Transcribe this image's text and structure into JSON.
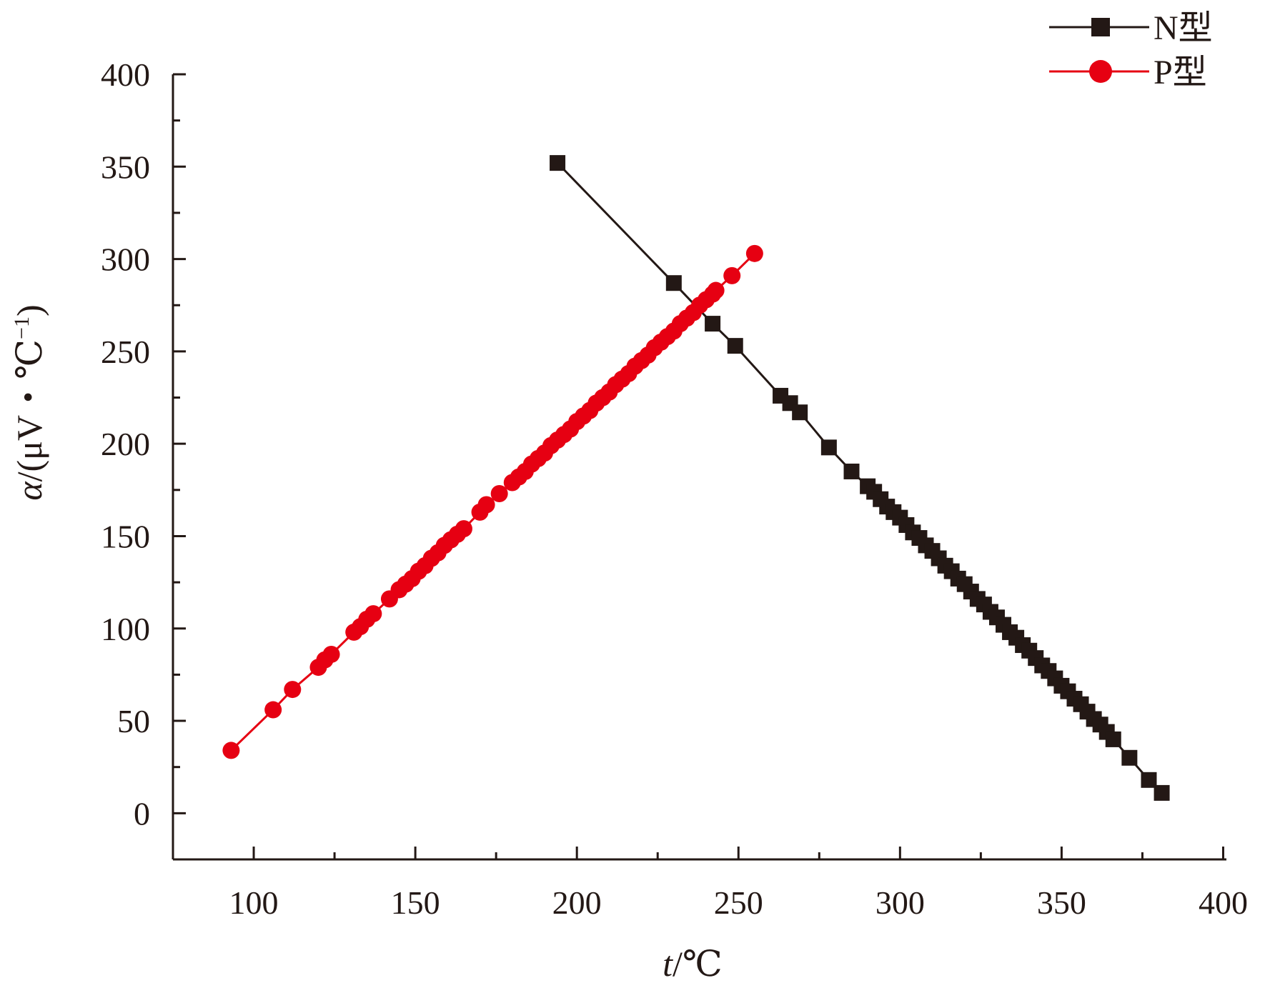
{
  "chart_data": {
    "type": "line",
    "title": "",
    "xlabel": {
      "italic": "t",
      "rest": "/℃"
    },
    "ylabel": {
      "italic": "α",
      "rest": "/(μV・℃",
      "sup": "−1",
      "close": ")"
    },
    "xlim": [
      75,
      401
    ],
    "ylim": [
      -25,
      400
    ],
    "xticks": [
      100,
      150,
      200,
      250,
      300,
      350,
      400
    ],
    "xtick_labels": [
      "100",
      "150",
      "200",
      "250",
      "300",
      "350",
      "400"
    ],
    "yticks": [
      0,
      50,
      100,
      150,
      200,
      250,
      300,
      350,
      400
    ],
    "ytick_labels": [
      "0",
      "50",
      "100",
      "150",
      "200",
      "250",
      "300",
      "350",
      "400"
    ],
    "grid": false,
    "legend_position": "top-right",
    "series": [
      {
        "name": "N型",
        "color": "#231815",
        "marker": "square",
        "x": [
          194,
          230,
          242,
          249,
          263,
          266,
          269,
          278,
          285,
          290,
          292,
          294,
          296,
          298,
          300,
          302,
          304,
          306,
          308,
          310,
          312,
          314,
          316,
          318,
          320,
          322,
          324,
          326,
          328,
          330,
          332,
          334,
          336,
          338,
          340,
          342,
          344,
          346,
          348,
          350,
          352,
          354,
          356,
          358,
          360,
          362,
          364,
          366,
          371,
          377,
          381
        ],
        "y": [
          352,
          287,
          265,
          253,
          226,
          222,
          217,
          198,
          185,
          177,
          174,
          170,
          166,
          163,
          160,
          156,
          152,
          149,
          145,
          142,
          138,
          134,
          131,
          127,
          124,
          120,
          116,
          113,
          109,
          106,
          102,
          98,
          95,
          91,
          88,
          84,
          80,
          77,
          73,
          69,
          66,
          62,
          59,
          55,
          51,
          48,
          44,
          40,
          30,
          18,
          11
        ]
      },
      {
        "name": "P型",
        "color": "#e60012",
        "marker": "circle",
        "x": [
          93,
          106,
          112,
          120,
          122,
          124,
          131,
          133,
          135,
          137,
          142,
          145,
          147,
          149,
          151,
          153,
          155,
          157,
          159,
          161,
          163,
          165,
          170,
          172,
          176,
          180,
          182,
          184,
          186,
          188,
          190,
          192,
          194,
          196,
          198,
          200,
          202,
          204,
          206,
          208,
          210,
          212,
          214,
          216,
          218,
          220,
          222,
          224,
          226,
          228,
          230,
          232,
          234,
          236,
          238,
          240,
          242,
          243,
          248,
          255
        ],
        "y": [
          34,
          56,
          67,
          79,
          83,
          86,
          98,
          101,
          105,
          108,
          116,
          121,
          124,
          127,
          131,
          134,
          138,
          141,
          145,
          148,
          151,
          154,
          163,
          167,
          173,
          179,
          182,
          185,
          189,
          192,
          195,
          199,
          202,
          205,
          208,
          212,
          215,
          218,
          222,
          225,
          228,
          232,
          235,
          238,
          242,
          245,
          248,
          252,
          255,
          258,
          261,
          265,
          268,
          271,
          275,
          278,
          281,
          283,
          291,
          303
        ]
      }
    ]
  }
}
